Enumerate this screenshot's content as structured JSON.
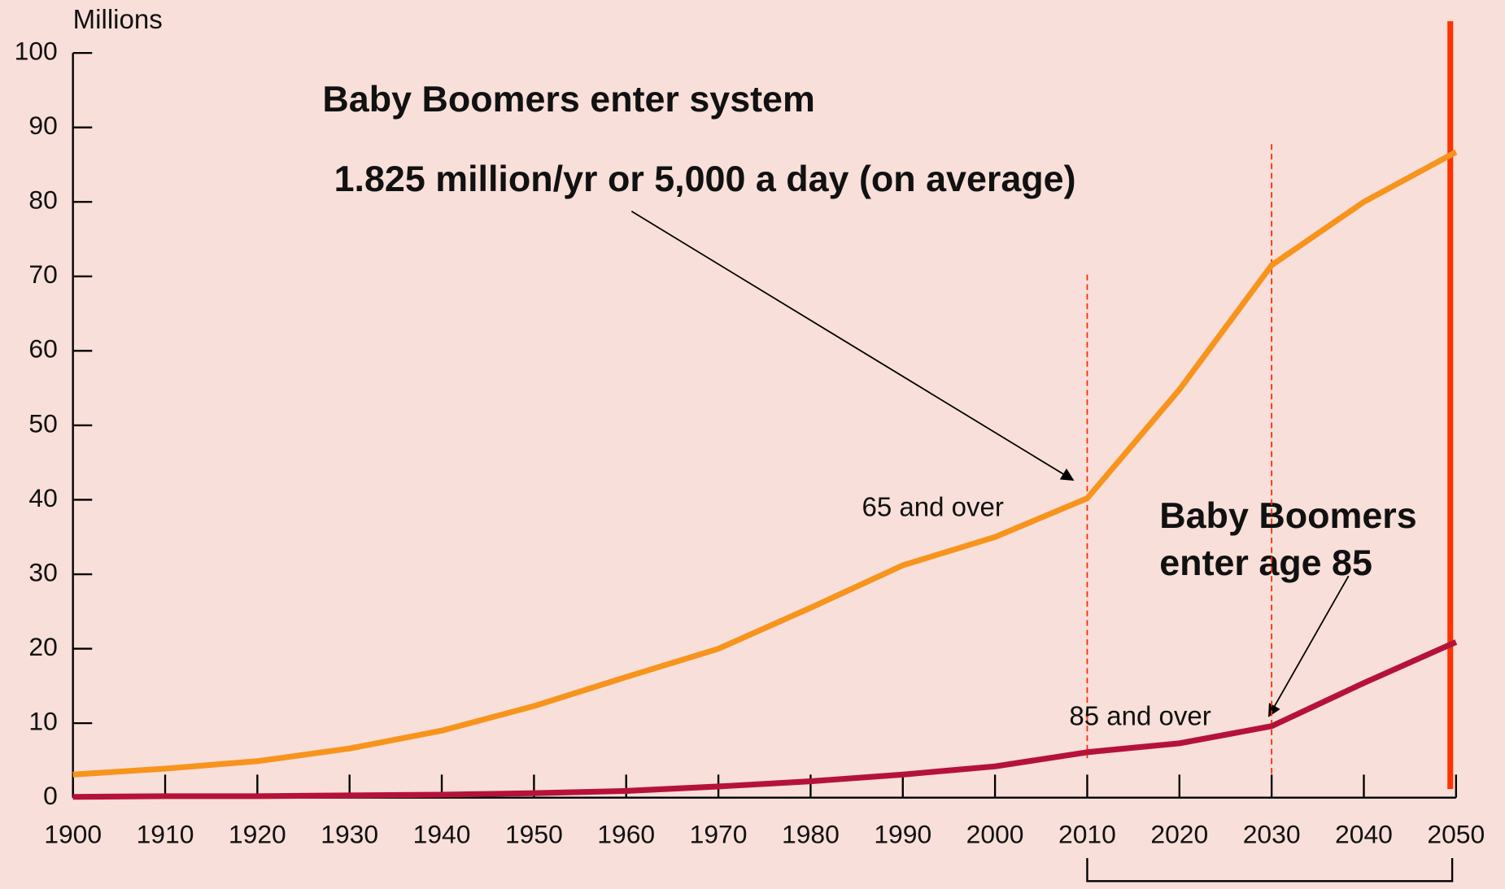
{
  "chart_data": {
    "type": "line",
    "y_axis_label": "Millions",
    "x": [
      1900,
      1910,
      1920,
      1930,
      1940,
      1950,
      1960,
      1970,
      1980,
      1990,
      2000,
      2010,
      2020,
      2030,
      2040,
      2050
    ],
    "series": [
      {
        "name": "65 and over",
        "color": "#f7941d",
        "values": [
          3.1,
          3.9,
          4.9,
          6.6,
          9.0,
          12.3,
          16.2,
          20.0,
          25.5,
          31.2,
          35.0,
          40.2,
          54.8,
          71.5,
          80.0,
          86.7
        ]
      },
      {
        "name": "85 and over",
        "color": "#b5123a",
        "values": [
          0.1,
          0.2,
          0.2,
          0.3,
          0.4,
          0.6,
          0.9,
          1.5,
          2.2,
          3.1,
          4.2,
          6.1,
          7.3,
          9.6,
          15.4,
          20.9
        ]
      }
    ],
    "xlim": [
      1900,
      2050
    ],
    "xticks": [
      1900,
      1910,
      1920,
      1930,
      1940,
      1950,
      1960,
      1970,
      1980,
      1990,
      2000,
      2010,
      2020,
      2030,
      2040,
      2050
    ],
    "ylim": [
      0,
      100
    ],
    "yticks": [
      0,
      10,
      20,
      30,
      40,
      50,
      60,
      70,
      80,
      90,
      100
    ],
    "annotations": [
      "Baby Boomers enter system",
      "1.825 million/yr or 5,000 a day (on average)",
      "Baby Boomers",
      "enter age 85"
    ]
  }
}
